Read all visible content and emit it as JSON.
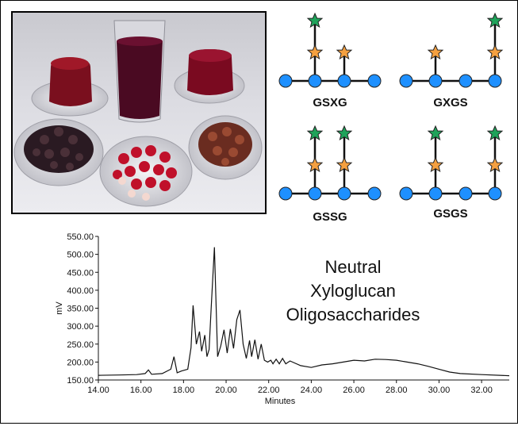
{
  "glycans": [
    {
      "name": "GSXG",
      "label": "GSXG"
    },
    {
      "name": "GXGS",
      "label": "GXGS"
    },
    {
      "name": "GSSG",
      "label": "GSSG"
    },
    {
      "name": "GSGS",
      "label": "GSGS"
    }
  ],
  "colors": {
    "glucose": "#1e90ff",
    "xylose": "#f4a040",
    "fucose_like": "#1fa35a",
    "line": "#111111"
  },
  "chart_data": {
    "type": "line",
    "title": "",
    "annotation": [
      "Neutral",
      "Xyloglucan",
      "Oligosaccharides"
    ],
    "xlabel": "Minutes",
    "ylabel": "mV",
    "xlim": [
      14.0,
      33.3
    ],
    "ylim": [
      150.0,
      550.0
    ],
    "x_ticks": [
      "14.00",
      "16.00",
      "18.00",
      "20.00",
      "22.00",
      "24.00",
      "26.00",
      "28.00",
      "30.00",
      "32.00"
    ],
    "y_ticks": [
      "150.00",
      "200.00",
      "250.00",
      "300.00",
      "350.00",
      "400.00",
      "450.00",
      "500.00",
      "550.00"
    ],
    "series": [
      {
        "x": [
          14.0,
          15.0,
          15.8,
          16.2,
          16.35,
          16.5,
          17.0,
          17.4,
          17.55,
          17.7,
          17.9,
          18.2,
          18.35,
          18.45,
          18.6,
          18.75,
          18.85,
          19.0,
          19.1,
          19.2,
          19.3,
          19.45,
          19.6,
          19.75,
          19.9,
          20.05,
          20.2,
          20.35,
          20.5,
          20.65,
          20.8,
          20.95,
          21.1,
          21.2,
          21.35,
          21.5,
          21.65,
          21.8,
          21.95,
          22.1,
          22.2,
          22.35,
          22.5,
          22.65,
          22.8,
          23.0,
          23.5,
          24.0,
          24.5,
          25.0,
          25.5,
          26.0,
          26.5,
          27.0,
          27.5,
          28.0,
          28.5,
          29.0,
          29.5,
          30.0,
          30.5,
          31.0,
          32.0,
          33.3
        ],
        "y": [
          163,
          164,
          165,
          168,
          178,
          166,
          168,
          180,
          215,
          170,
          175,
          180,
          240,
          358,
          250,
          285,
          230,
          275,
          215,
          235,
          350,
          520,
          215,
          245,
          290,
          225,
          292,
          238,
          318,
          345,
          250,
          210,
          260,
          215,
          262,
          208,
          250,
          205,
          200,
          205,
          195,
          208,
          195,
          210,
          195,
          203,
          190,
          185,
          192,
          195,
          200,
          205,
          203,
          208,
          207,
          205,
          200,
          195,
          188,
          180,
          172,
          168,
          165,
          162
        ]
      }
    ]
  }
}
